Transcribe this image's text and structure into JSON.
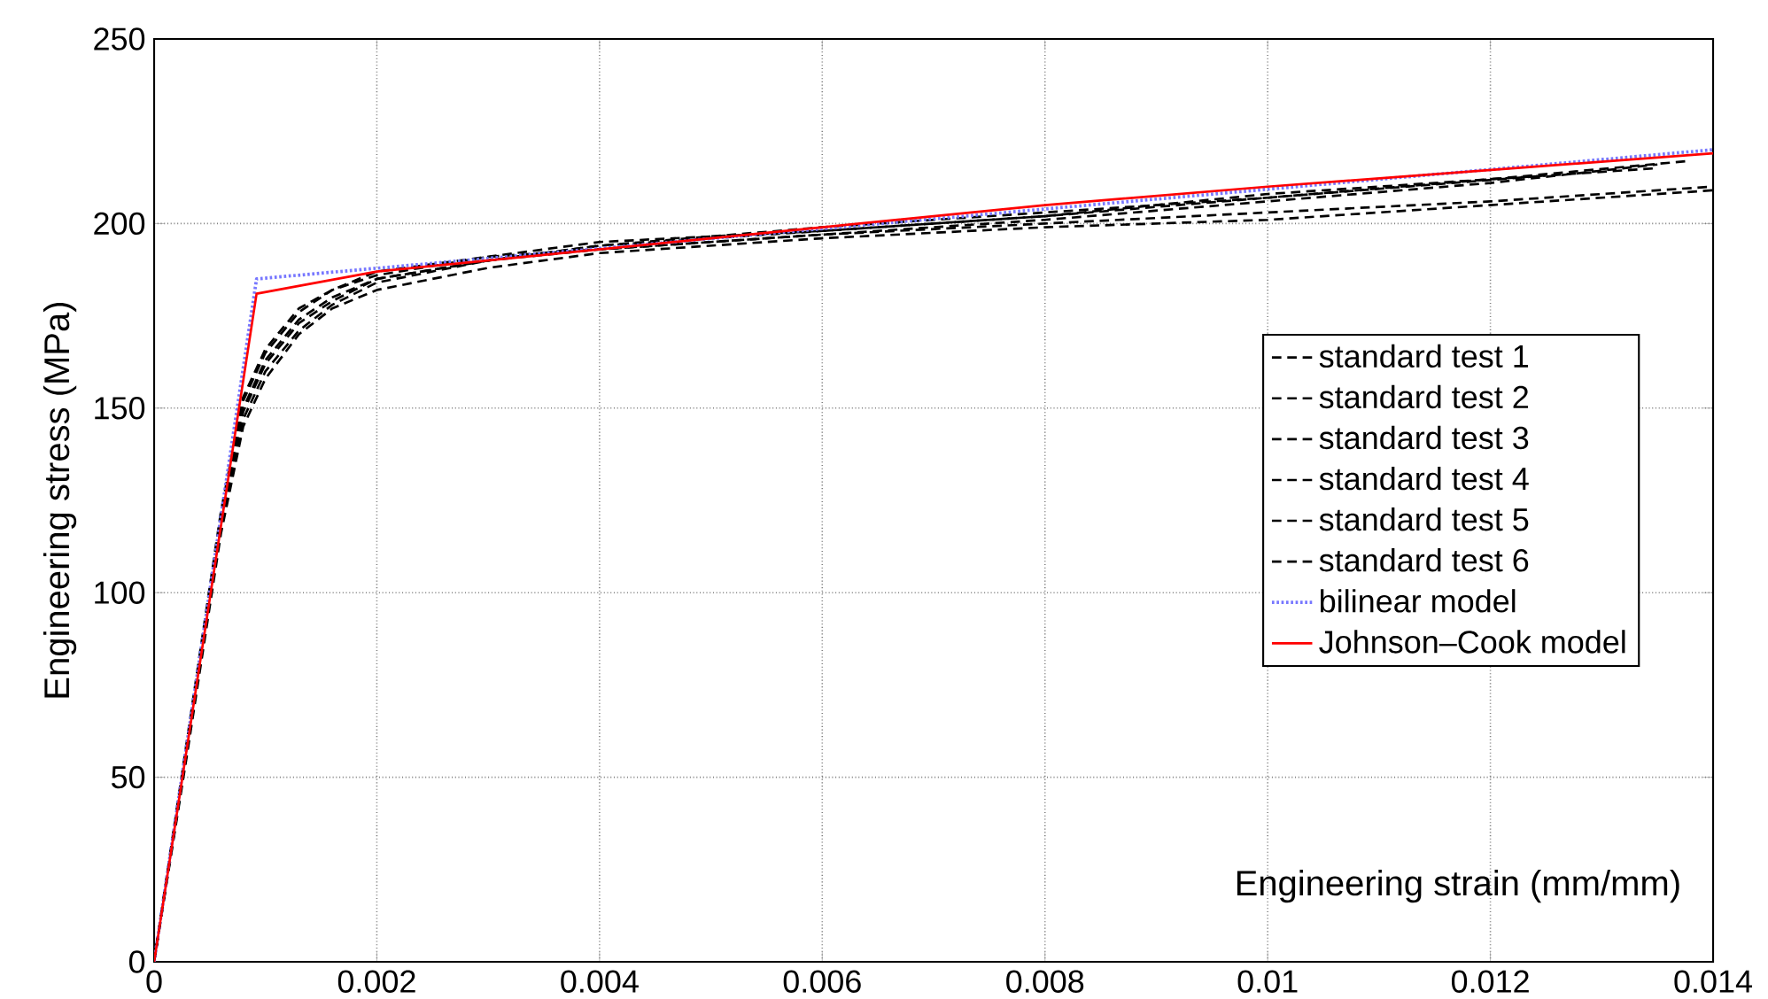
{
  "chart_data": {
    "type": "line",
    "xlabel": "Engineering strain (mm/mm)",
    "ylabel": "Engineering stress (MPa)",
    "xlim": [
      0,
      0.014
    ],
    "ylim": [
      0,
      250
    ],
    "xticks": [
      0,
      0.002,
      0.004,
      0.006,
      0.008,
      0.01,
      0.012,
      0.014
    ],
    "yticks": [
      0,
      50,
      100,
      150,
      200,
      250
    ],
    "grid": true,
    "legend": "right",
    "marker": "none",
    "series": [
      {
        "name": "standard test 1",
        "color": "#000000",
        "line_style": "dashed",
        "x": [
          0,
          0.0003,
          0.0006,
          0.0008,
          0.001,
          0.0013,
          0.0016,
          0.002,
          0.003,
          0.004,
          0.006,
          0.008,
          0.01,
          0.012,
          0.0135
        ],
        "values": [
          0,
          60,
          120,
          150,
          163,
          174,
          180,
          185,
          190,
          194,
          198,
          202,
          208,
          212,
          215
        ]
      },
      {
        "name": "standard test 2",
        "color": "#000000",
        "line_style": "dashed",
        "x": [
          0,
          0.0003,
          0.0006,
          0.0008,
          0.001,
          0.0013,
          0.0016,
          0.002,
          0.003,
          0.004,
          0.006,
          0.008,
          0.01,
          0.012,
          0.014
        ],
        "values": [
          0,
          58,
          118,
          147,
          160,
          171,
          178,
          184,
          190,
          193,
          197,
          200,
          203,
          206,
          210
        ]
      },
      {
        "name": "standard test 3",
        "color": "#000000",
        "line_style": "dashed",
        "x": [
          0,
          0.0003,
          0.0006,
          0.0008,
          0.001,
          0.0013,
          0.0016,
          0.002,
          0.003,
          0.004,
          0.006,
          0.008,
          0.01,
          0.012,
          0.0135
        ],
        "values": [
          0,
          60,
          121,
          152,
          165,
          176,
          182,
          186,
          191,
          193,
          197,
          201,
          206,
          211,
          216
        ]
      },
      {
        "name": "standard test 4",
        "color": "#000000",
        "line_style": "dashed",
        "x": [
          0,
          0.0003,
          0.0006,
          0.0008,
          0.001,
          0.0013,
          0.0016,
          0.002,
          0.003,
          0.004,
          0.006,
          0.008,
          0.01,
          0.012,
          0.014
        ],
        "values": [
          0,
          57,
          116,
          145,
          158,
          170,
          177,
          182,
          188,
          192,
          196,
          199,
          201,
          205,
          209
        ]
      },
      {
        "name": "standard test 5",
        "color": "#000000",
        "line_style": "dashed",
        "x": [
          0,
          0.0003,
          0.0006,
          0.0008,
          0.001,
          0.0013,
          0.0016,
          0.002,
          0.003,
          0.004,
          0.006,
          0.008,
          0.01,
          0.0125
        ],
        "values": [
          0,
          61,
          122,
          153,
          166,
          177,
          182,
          187,
          191,
          195,
          198,
          202,
          207,
          213
        ]
      },
      {
        "name": "standard test 6",
        "color": "#000000",
        "line_style": "dashed",
        "x": [
          0,
          0.0003,
          0.0006,
          0.0008,
          0.001,
          0.0013,
          0.0016,
          0.002,
          0.003,
          0.004,
          0.006,
          0.008,
          0.01,
          0.012,
          0.0138
        ],
        "values": [
          0,
          59,
          119,
          149,
          162,
          173,
          179,
          185,
          190,
          194,
          199,
          203,
          207,
          212,
          217
        ]
      },
      {
        "name": "bilinear model",
        "color": "#7777ff",
        "line_style": "dotted",
        "x": [
          0,
          0.00092,
          0.014
        ],
        "values": [
          0,
          185,
          220
        ]
      },
      {
        "name": "Johnson–Cook model",
        "color": "#ff0000",
        "line_style": "solid",
        "x": [
          0,
          0.00092,
          0.002,
          0.004,
          0.006,
          0.008,
          0.01,
          0.012,
          0.014
        ],
        "values": [
          0,
          181,
          187,
          193,
          199,
          205,
          210,
          214.5,
          219
        ]
      }
    ]
  }
}
